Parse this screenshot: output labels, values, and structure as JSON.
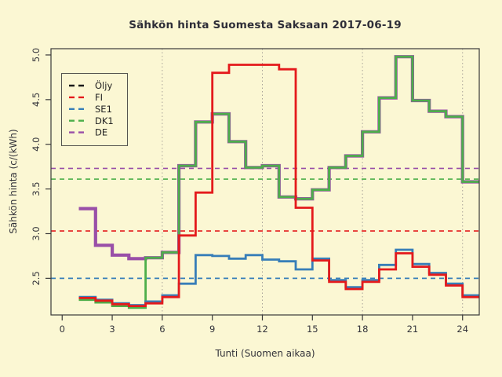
{
  "title": "Sähkön hinta Suomesta Saksaan 2017-06-19",
  "x_label": "Tunti (Suomen aikaa)",
  "y_label": "Sähkön hinta (c/(kWh)",
  "colors": {
    "background": "#FBF7D3",
    "frame": "#3A3A3A",
    "grid": "#A9A399",
    "text": "#33333A",
    "oljy": "#1A1A1A",
    "fi": "#E41A1C",
    "se1": "#377EB8",
    "dk1": "#4DAF4A",
    "de": "#994FA8"
  },
  "chart_data": {
    "type": "line",
    "step": "post",
    "title": "Sähkön hinta Suomesta Saksaan 2017-06-19",
    "xlabel": "Tunti (Suomen aikaa)",
    "ylabel": "Sähkön hinta (c/(kWh)",
    "x_hours_start": 1,
    "x_hours_end": 25,
    "xlim": [
      -0.67,
      25.0
    ],
    "ylim": [
      2.09,
      5.07
    ],
    "x_ticks": [
      0,
      3,
      6,
      9,
      12,
      15,
      18,
      21,
      24
    ],
    "x_tick_labels": [
      "0",
      "3",
      "6",
      "9",
      "12",
      "15",
      "18",
      "21",
      "24"
    ],
    "y_ticks": [
      2.5,
      3.0,
      3.5,
      4.0,
      4.5,
      5.0
    ],
    "y_tick_labels": [
      "2.5",
      "3.0",
      "3.5",
      "4.0",
      "4.5",
      "5.0"
    ],
    "grid_x": [
      6,
      12,
      18,
      24
    ],
    "legend_position": "top-left",
    "series": [
      {
        "name": "Öljy",
        "color": "#1A1A1A",
        "dashed_legend": true,
        "values": [],
        "avg": null
      },
      {
        "name": "FI",
        "color": "#E41A1C",
        "dashed_legend": true,
        "values": [
          2.28,
          2.25,
          2.21,
          2.19,
          2.22,
          2.29,
          2.98,
          3.46,
          4.8,
          4.89,
          4.89,
          4.89,
          4.84,
          3.29,
          2.7,
          2.46,
          2.38,
          2.46,
          2.6,
          2.78,
          2.63,
          2.54,
          2.42,
          2.29
        ],
        "avg": 3.03
      },
      {
        "name": "SE1",
        "color": "#377EB8",
        "dashed_legend": true,
        "values": [
          2.29,
          2.26,
          2.22,
          2.2,
          2.24,
          2.31,
          2.44,
          2.76,
          2.75,
          2.72,
          2.76,
          2.71,
          2.69,
          2.6,
          2.72,
          2.48,
          2.4,
          2.48,
          2.65,
          2.82,
          2.66,
          2.56,
          2.44,
          2.31
        ],
        "avg": 2.5
      },
      {
        "name": "DK1",
        "color": "#4DAF4A",
        "dashed_legend": true,
        "values": [
          2.26,
          2.23,
          2.19,
          2.17,
          2.73,
          2.79,
          3.76,
          4.25,
          4.34,
          4.03,
          3.74,
          3.76,
          3.41,
          3.39,
          3.49,
          3.74,
          3.87,
          4.14,
          4.52,
          4.98,
          4.49,
          4.37,
          4.31,
          3.58
        ],
        "avg": 3.61
      },
      {
        "name": "DE",
        "color": "#994FA8",
        "dashed_legend": true,
        "values": [
          3.28,
          2.87,
          2.76,
          2.72,
          2.73,
          2.79,
          3.76,
          4.25,
          4.34,
          4.03,
          3.74,
          3.76,
          3.41,
          3.39,
          3.49,
          3.74,
          3.87,
          4.14,
          4.52,
          4.98,
          4.49,
          4.37,
          4.31,
          3.58
        ],
        "avg": 3.73
      }
    ]
  },
  "legend": {
    "entries": [
      {
        "label": "Öljy",
        "color": "#1A1A1A"
      },
      {
        "label": "FI",
        "color": "#E41A1C"
      },
      {
        "label": "SE1",
        "color": "#377EB8"
      },
      {
        "label": "DK1",
        "color": "#4DAF4A"
      },
      {
        "label": "DE",
        "color": "#994FA8"
      }
    ]
  }
}
